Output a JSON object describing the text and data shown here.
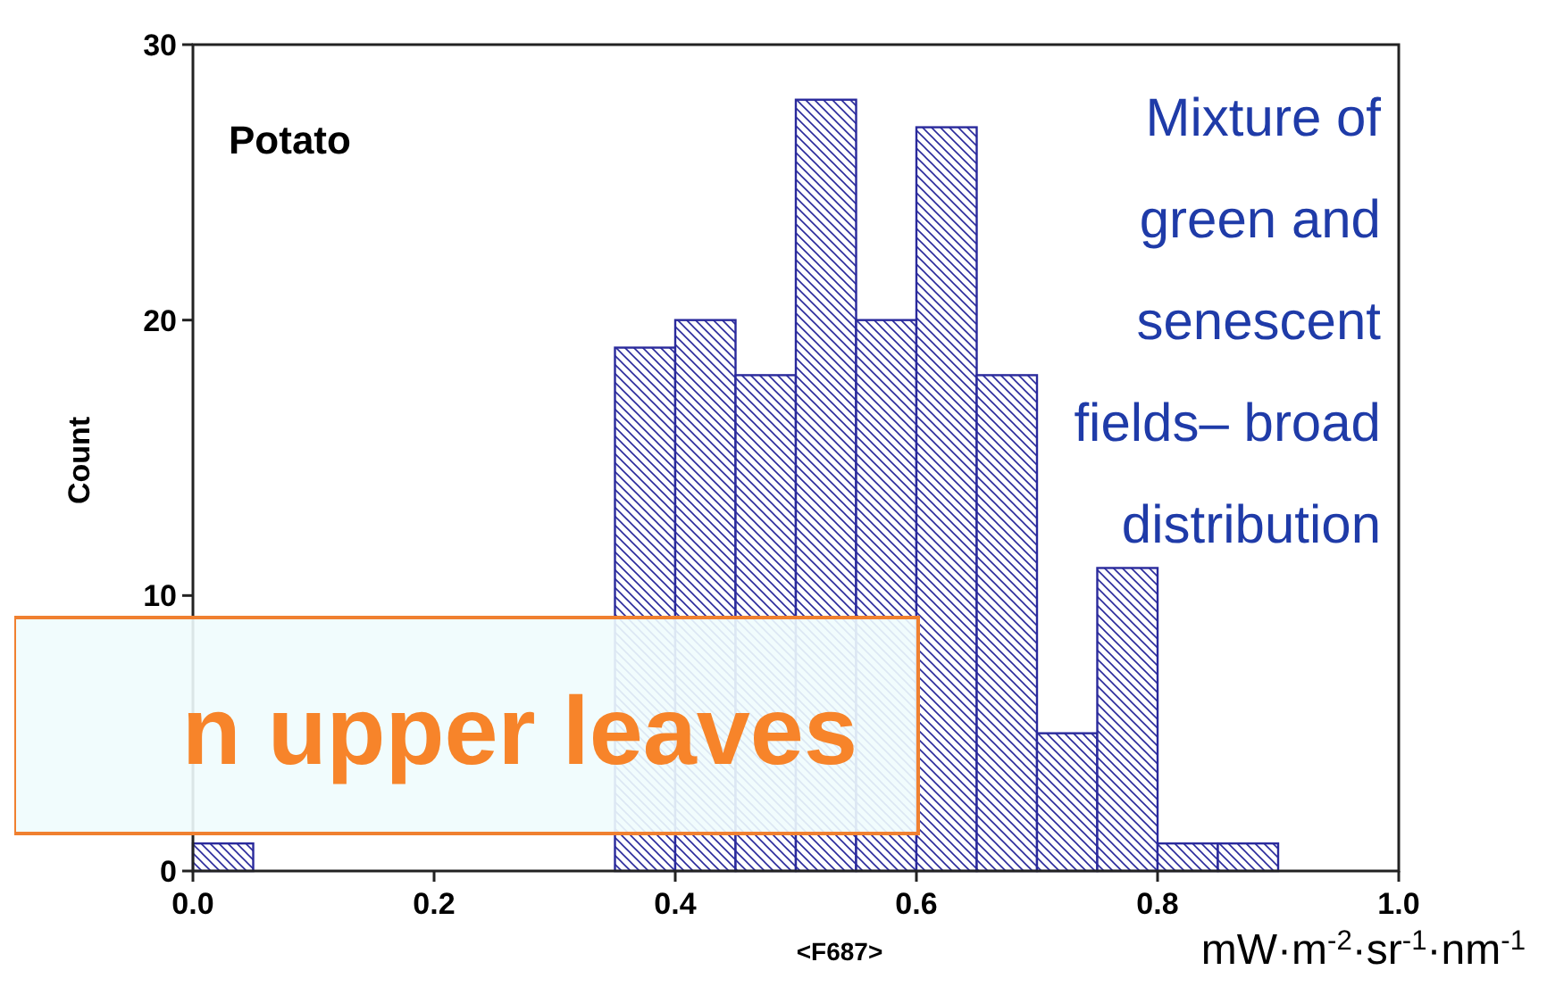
{
  "chart_data": {
    "type": "histogram",
    "xlabel": "<F687>",
    "ylabel": "Count",
    "color": "#2a2a9c",
    "bins": [
      0,
      0.05,
      0.1,
      0.15,
      0.2,
      0.25,
      0.3,
      0.35,
      0.4,
      0.45,
      0.5,
      0.55,
      0.6,
      0.65,
      0.7,
      0.75,
      0.8,
      0.85,
      0.9
    ],
    "values": [
      1,
      null,
      null,
      null,
      null,
      null,
      null,
      19,
      20,
      18,
      28,
      20,
      27,
      18,
      5,
      11,
      1,
      1
    ],
    "xlim": [
      0,
      1
    ],
    "ylim": [
      0,
      30
    ],
    "xticks": [
      {
        "value": 0,
        "label": "0.0"
      },
      {
        "value": 0.2,
        "label": "0.2"
      },
      {
        "value": 0.4,
        "label": "0.4"
      },
      {
        "value": 0.6,
        "label": "0.6"
      },
      {
        "value": 0.8,
        "label": "0.8"
      },
      {
        "value": 1,
        "label": "1.0"
      }
    ],
    "yticks": [
      0,
      10,
      20,
      30
    ],
    "annotations": [
      "Potato",
      "Mixture of green and senescent fields– broad distribution",
      "mW·m$^{-2}$·sr$^{-1}$·nm$^{-1}$",
      "n upper leaves"
    ]
  }
}
